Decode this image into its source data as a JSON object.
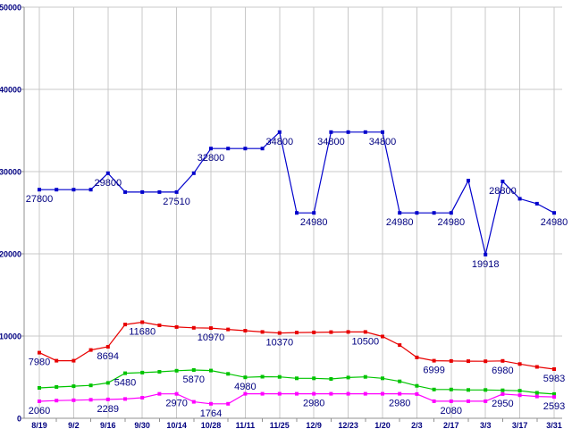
{
  "chart_data": {
    "type": "line",
    "title": "",
    "xlabel": "",
    "ylabel": "",
    "n_points": 31,
    "x_tick_labels": [
      "8/19",
      "9/2",
      "9/16",
      "9/30",
      "10/14",
      "10/28",
      "11/11",
      "11/25",
      "12/9",
      "12/23",
      "1/20",
      "2/3",
      "2/17",
      "3/3",
      "3/17",
      "3/31"
    ],
    "x_label_every_n_points": 2,
    "y_tick_labels": [
      "0",
      "10000",
      "20000",
      "30000",
      "40000",
      "50000"
    ],
    "y_tick_values": [
      0,
      10000,
      20000,
      30000,
      40000,
      50000
    ],
    "ylim": [
      0,
      50000
    ],
    "grid": true,
    "legend_position": "none",
    "colors": {
      "background": "#FFFFFF",
      "gridline": "#C8C8C8",
      "axis_line": "#909090",
      "label_text": "#000080"
    },
    "series": [
      {
        "name": "blue",
        "color": "#0000CC",
        "marker": "square",
        "values": [
          27800,
          27800,
          27800,
          27800,
          29800,
          27510,
          27510,
          27510,
          27510,
          29800,
          32800,
          32800,
          32800,
          32800,
          34800,
          24980,
          24980,
          34800,
          34800,
          34800,
          34800,
          24980,
          24980,
          24980,
          24980,
          28900,
          19918,
          28800,
          26700,
          26100,
          24980
        ],
        "point_labels": [
          {
            "index": 0,
            "text": "27800"
          },
          {
            "index": 4,
            "text": "29800"
          },
          {
            "index": 8,
            "text": "27510"
          },
          {
            "index": 10,
            "text": "32800"
          },
          {
            "index": 14,
            "text": "34800"
          },
          {
            "index": 16,
            "text": "24980"
          },
          {
            "index": 17,
            "text": "34800"
          },
          {
            "index": 20,
            "text": "34800"
          },
          {
            "index": 21,
            "text": "24980"
          },
          {
            "index": 24,
            "text": "24980"
          },
          {
            "index": 26,
            "text": "19918"
          },
          {
            "index": 27,
            "text": "28800"
          },
          {
            "index": 30,
            "text": "24980"
          }
        ]
      },
      {
        "name": "red",
        "color": "#E80000",
        "marker": "square",
        "values": [
          7980,
          7000,
          7000,
          8300,
          8694,
          11400,
          11680,
          11300,
          11100,
          11000,
          10970,
          10800,
          10650,
          10500,
          10370,
          10420,
          10450,
          10480,
          10500,
          10500,
          9950,
          8900,
          7400,
          6999,
          6970,
          6950,
          6930,
          6980,
          6600,
          6250,
          5983
        ],
        "point_labels": [
          {
            "index": 0,
            "text": "7980"
          },
          {
            "index": 4,
            "text": "8694"
          },
          {
            "index": 6,
            "text": "11680"
          },
          {
            "index": 10,
            "text": "10970"
          },
          {
            "index": 14,
            "text": "10370"
          },
          {
            "index": 19,
            "text": "10500"
          },
          {
            "index": 23,
            "text": "6999"
          },
          {
            "index": 27,
            "text": "6980"
          },
          {
            "index": 30,
            "text": "5983"
          }
        ]
      },
      {
        "name": "green",
        "color": "#00C400",
        "marker": "square",
        "values": [
          3700,
          3800,
          3900,
          4000,
          4300,
          5480,
          5550,
          5650,
          5780,
          5870,
          5800,
          5400,
          4980,
          5050,
          5030,
          4860,
          4860,
          4780,
          4960,
          5030,
          4860,
          4490,
          3950,
          3500,
          3500,
          3450,
          3450,
          3400,
          3350,
          3100,
          2950
        ],
        "point_labels": [
          {
            "index": 5,
            "text": "5480"
          },
          {
            "index": 9,
            "text": "5870"
          },
          {
            "index": 12,
            "text": "4980"
          }
        ]
      },
      {
        "name": "magenta",
        "color": "#FF00FF",
        "marker": "square",
        "values": [
          2060,
          2150,
          2200,
          2250,
          2289,
          2350,
          2500,
          2970,
          2970,
          2000,
          1764,
          1764,
          2980,
          2980,
          2980,
          2980,
          2980,
          2980,
          2980,
          2980,
          2980,
          2980,
          2950,
          2080,
          2080,
          2080,
          2080,
          2950,
          2800,
          2650,
          2593
        ],
        "point_labels": [
          {
            "index": 0,
            "text": "2060"
          },
          {
            "index": 4,
            "text": "2289"
          },
          {
            "index": 8,
            "text": "2970"
          },
          {
            "index": 10,
            "text": "1764"
          },
          {
            "index": 16,
            "text": "2980"
          },
          {
            "index": 21,
            "text": "2980"
          },
          {
            "index": 24,
            "text": "2080"
          },
          {
            "index": 27,
            "text": "2950"
          },
          {
            "index": 30,
            "text": "2593"
          }
        ]
      }
    ]
  }
}
